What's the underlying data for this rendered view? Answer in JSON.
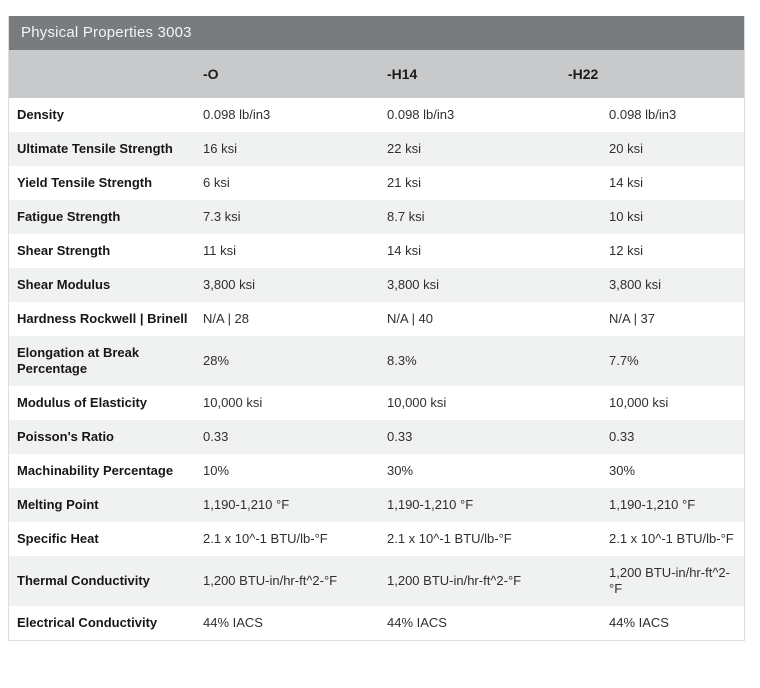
{
  "colors": {
    "title_bar_bg": "#797c7f",
    "title_text": "#f4f4f4",
    "header_row_bg": "#c8c9ca",
    "stripe_row_bg": "#f0f1f1",
    "row_bg": "#ffffff",
    "label_text": "#171717",
    "value_text": "#2f2f2f",
    "table_border": "#dddddd"
  },
  "chart_data": {
    "type": "table",
    "title": "Physical Properties 3003",
    "columns": [
      "",
      "-O",
      "-H14",
      "-H22"
    ],
    "rows": [
      [
        "Density",
        "0.098 lb/in3",
        "0.098 lb/in3",
        "0.098 lb/in3"
      ],
      [
        "Ultimate Tensile Strength",
        "16 ksi",
        "22 ksi",
        "20 ksi"
      ],
      [
        "Yield Tensile Strength",
        "6 ksi",
        "21 ksi",
        "14 ksi"
      ],
      [
        "Fatigue Strength",
        "7.3 ksi",
        "8.7 ksi",
        "10 ksi"
      ],
      [
        "Shear Strength",
        "11 ksi",
        "14 ksi",
        "12 ksi"
      ],
      [
        "Shear Modulus",
        "3,800 ksi",
        "3,800 ksi",
        "3,800 ksi"
      ],
      [
        "Hardness Rockwell | Brinell",
        "N/A | 28",
        "N/A | 40",
        "N/A | 37"
      ],
      [
        "Elongation at Break Percentage",
        "28%",
        "8.3%",
        "7.7%"
      ],
      [
        "Modulus of Elasticity",
        "10,000 ksi",
        "10,000 ksi",
        "10,000 ksi"
      ],
      [
        "Poisson's Ratio",
        "0.33",
        "0.33",
        "0.33"
      ],
      [
        "Machinability Percentage",
        "10%",
        "30%",
        "30%"
      ],
      [
        "Melting Point",
        "1,190-1,210 °F",
        "1,190-1,210 °F",
        "1,190-1,210 °F"
      ],
      [
        "Specific Heat",
        "2.1 x 10^-1 BTU/lb-°F",
        "2.1 x 10^-1 BTU/lb-°F",
        "2.1 x 10^-1 BTU/lb-°F"
      ],
      [
        "Thermal Conductivity",
        "1,200 BTU-in/hr-ft^2-°F",
        "1,200 BTU-in/hr-ft^2-°F",
        "1,200 BTU-in/hr-ft^2-°F"
      ],
      [
        "Electrical Conductivity",
        "44% IACS",
        "44% IACS",
        "44% IACS"
      ]
    ]
  }
}
